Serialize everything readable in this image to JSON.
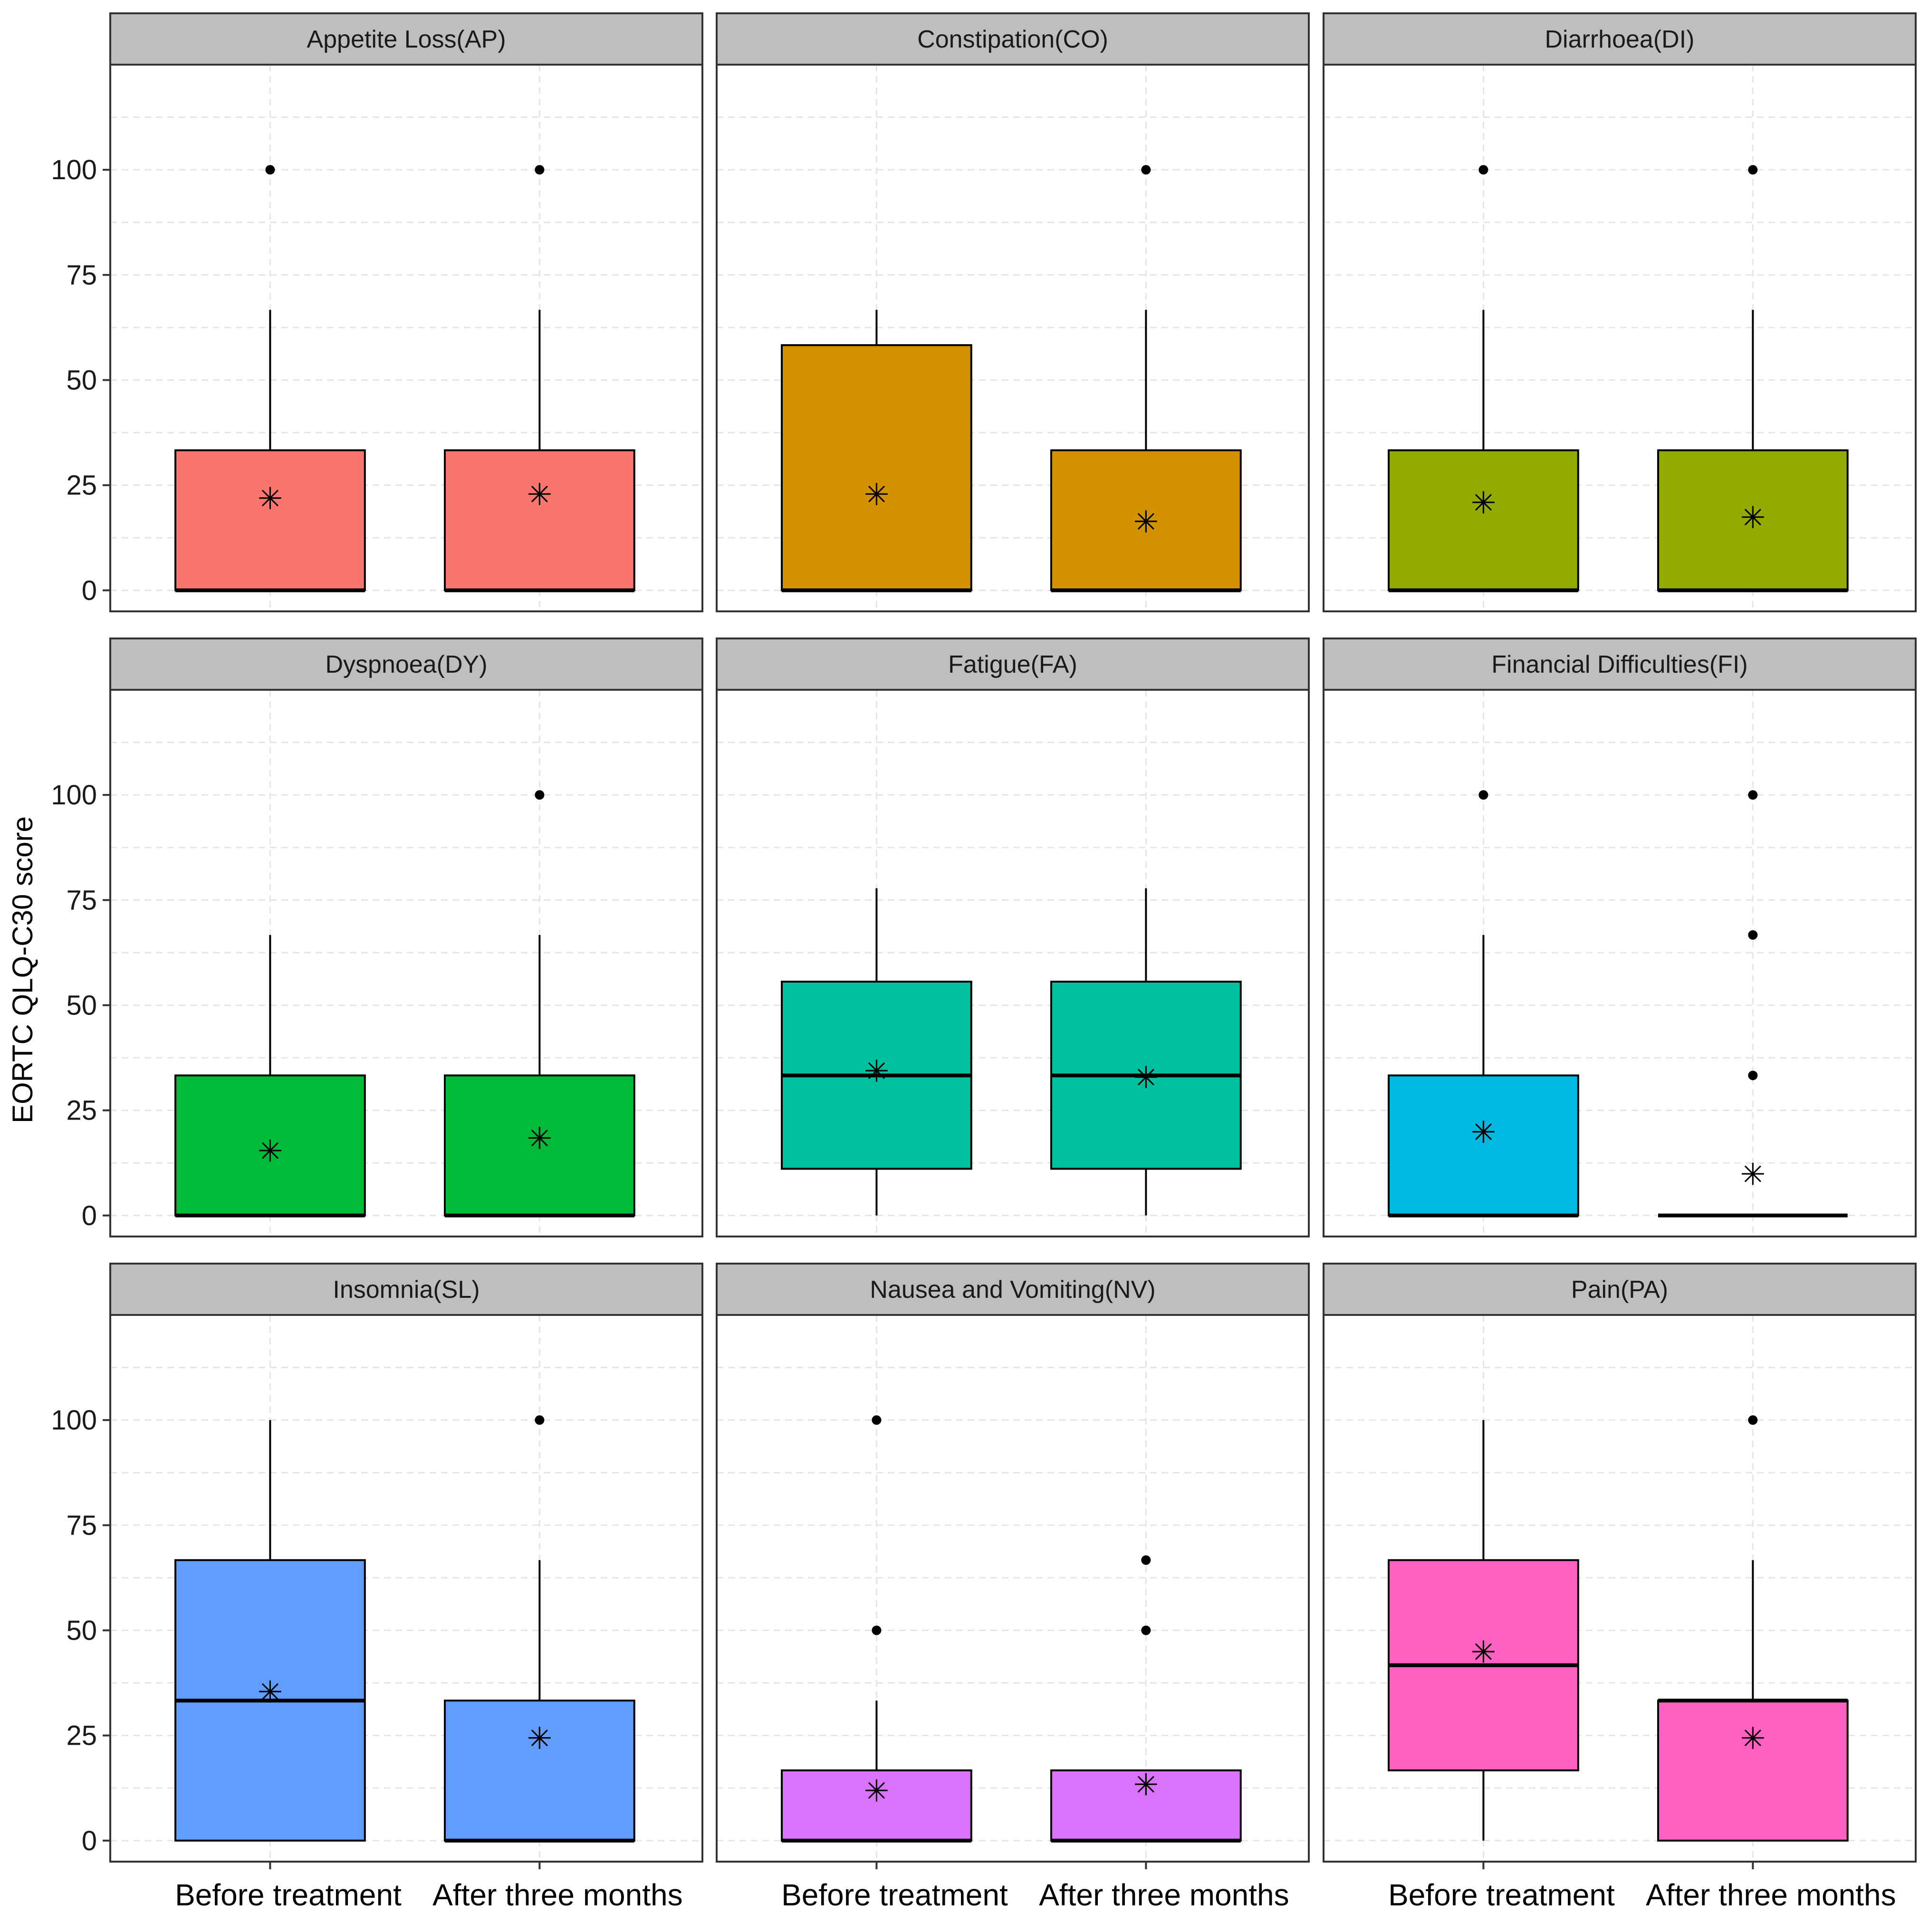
{
  "chart_data": {
    "type": "box",
    "layout": "facet-grid-3x3",
    "ylabel": "EORTC QLQ-C30 score",
    "xlabel": "",
    "ylim": [
      -5,
      125
    ],
    "yticks": [
      0,
      25,
      50,
      75,
      100
    ],
    "categories": [
      "Before treatment",
      "After three months"
    ],
    "mean_marker": "✳",
    "panels": [
      {
        "title": "Appetite Loss(AP)",
        "color": "#F8766D",
        "boxes": [
          {
            "q1": 0,
            "median": 0,
            "q3": 33.3,
            "whisker_low": 0,
            "whisker_high": 66.7,
            "mean": 22,
            "outliers": [
              100
            ]
          },
          {
            "q1": 0,
            "median": 0,
            "q3": 33.3,
            "whisker_low": 0,
            "whisker_high": 66.7,
            "mean": 23,
            "outliers": [
              100
            ]
          }
        ]
      },
      {
        "title": "Constipation(CO)",
        "color": "#D39200",
        "boxes": [
          {
            "q1": 0,
            "median": 0,
            "q3": 58.3,
            "whisker_low": 0,
            "whisker_high": 66.7,
            "mean": 23,
            "outliers": []
          },
          {
            "q1": 0,
            "median": 0,
            "q3": 33.3,
            "whisker_low": 0,
            "whisker_high": 66.7,
            "mean": 16.5,
            "outliers": [
              100
            ]
          }
        ]
      },
      {
        "title": "Diarrhoea(DI)",
        "color": "#93AA00",
        "boxes": [
          {
            "q1": 0,
            "median": 0,
            "q3": 33.3,
            "whisker_low": 0,
            "whisker_high": 66.7,
            "mean": 21,
            "outliers": [
              100
            ]
          },
          {
            "q1": 0,
            "median": 0,
            "q3": 33.3,
            "whisker_low": 0,
            "whisker_high": 66.7,
            "mean": 17.5,
            "outliers": [
              100
            ]
          }
        ]
      },
      {
        "title": "Dyspnoea(DY)",
        "color": "#00BA38",
        "boxes": [
          {
            "q1": 0,
            "median": 0,
            "q3": 33.3,
            "whisker_low": 0,
            "whisker_high": 66.7,
            "mean": 15.5,
            "outliers": []
          },
          {
            "q1": 0,
            "median": 0,
            "q3": 33.3,
            "whisker_low": 0,
            "whisker_high": 66.7,
            "mean": 18.5,
            "outliers": [
              100
            ]
          }
        ]
      },
      {
        "title": "Fatigue(FA)",
        "color": "#00C19F",
        "boxes": [
          {
            "q1": 11.1,
            "median": 33.3,
            "q3": 55.6,
            "whisker_low": 0,
            "whisker_high": 77.8,
            "mean": 34.5,
            "outliers": []
          },
          {
            "q1": 11.1,
            "median": 33.3,
            "q3": 55.6,
            "whisker_low": 0,
            "whisker_high": 77.8,
            "mean": 33,
            "outliers": []
          }
        ]
      },
      {
        "title": "Financial Difficulties(FI)",
        "color": "#00B9E3",
        "boxes": [
          {
            "q1": 0,
            "median": 0,
            "q3": 33.3,
            "whisker_low": 0,
            "whisker_high": 66.7,
            "mean": 20,
            "outliers": [
              100
            ]
          },
          {
            "q1": 0,
            "median": 0,
            "q3": 0,
            "whisker_low": 0,
            "whisker_high": 0,
            "mean": 10,
            "outliers": [
              33.3,
              66.7,
              100
            ]
          }
        ]
      },
      {
        "title": "Insomnia(SL)",
        "color": "#619CFF",
        "boxes": [
          {
            "q1": 0,
            "median": 33.3,
            "q3": 66.7,
            "whisker_low": 0,
            "whisker_high": 100,
            "mean": 35.5,
            "outliers": []
          },
          {
            "q1": 0,
            "median": 0,
            "q3": 33.3,
            "whisker_low": 0,
            "whisker_high": 66.7,
            "mean": 24.5,
            "outliers": [
              100
            ]
          }
        ]
      },
      {
        "title": "Nausea and Vomiting(NV)",
        "color": "#DB72FB",
        "boxes": [
          {
            "q1": 0,
            "median": 0,
            "q3": 16.7,
            "whisker_low": 0,
            "whisker_high": 33.3,
            "mean": 12,
            "outliers": [
              50,
              100
            ]
          },
          {
            "q1": 0,
            "median": 0,
            "q3": 16.7,
            "whisker_low": 0,
            "whisker_high": 16.7,
            "mean": 13.5,
            "outliers": [
              50,
              66.7
            ]
          }
        ]
      },
      {
        "title": "Pain(PA)",
        "color": "#FF61C3",
        "boxes": [
          {
            "q1": 16.7,
            "median": 41.7,
            "q3": 66.7,
            "whisker_low": 0,
            "whisker_high": 100,
            "mean": 45,
            "outliers": []
          },
          {
            "q1": 0,
            "median": 33.3,
            "q3": 33.3,
            "whisker_low": 0,
            "whisker_high": 66.7,
            "mean": 24.5,
            "outliers": [
              100
            ]
          }
        ]
      }
    ]
  }
}
